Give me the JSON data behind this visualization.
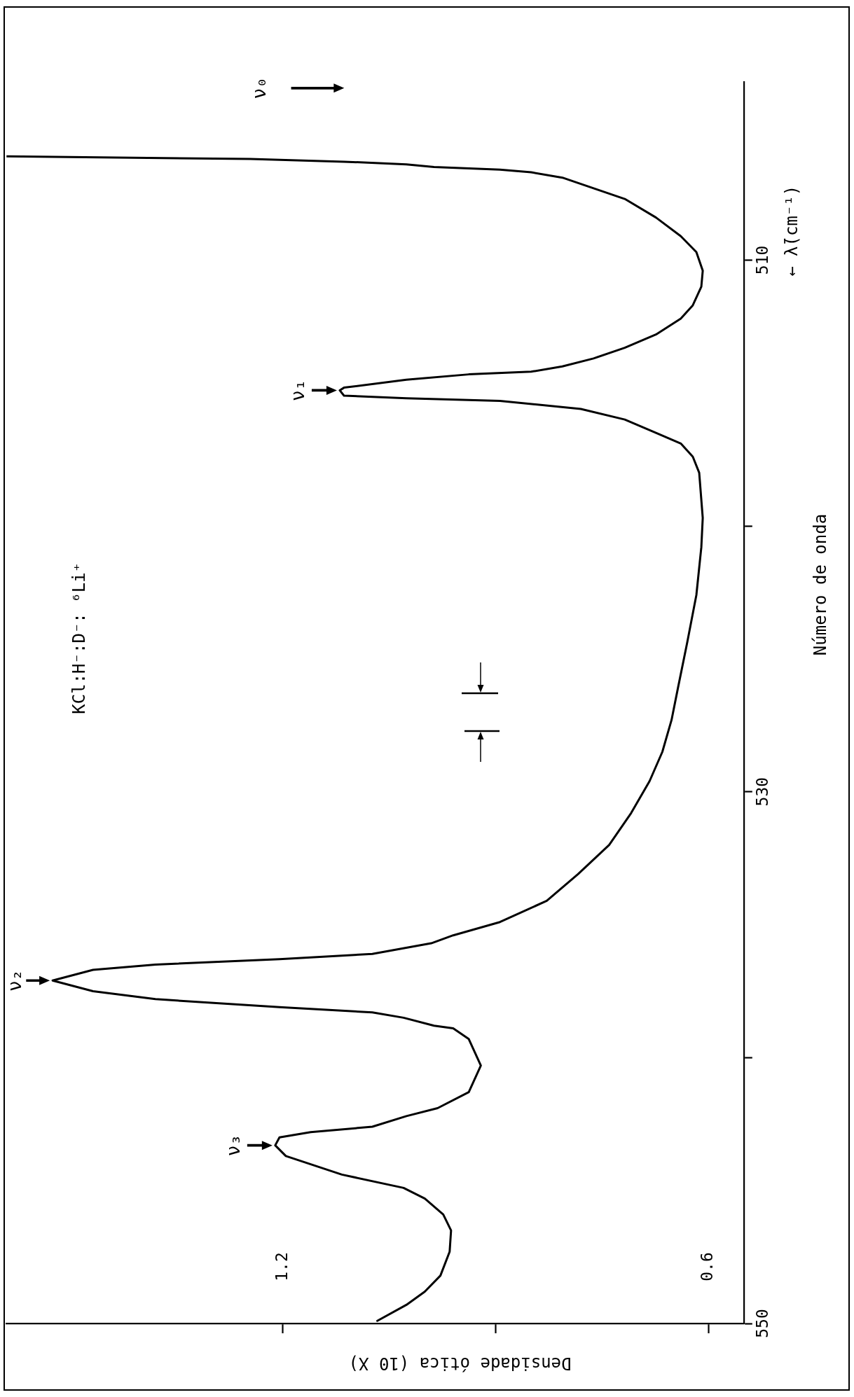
{
  "chart_data": {
    "type": "line",
    "title": "KCl:H⁻:D⁻: ⁶Li⁺",
    "xlabel": "Densidade ótica (10 X)",
    "ylabel": "Número de onda",
    "x": [
      1.59,
      1.246,
      1.114,
      1.026,
      0.987,
      0.894,
      0.85,
      0.806,
      0.762,
      0.718,
      0.674,
      0.639,
      0.617,
      0.608,
      0.61,
      0.622,
      0.639,
      0.674,
      0.718,
      0.762,
      0.806,
      0.85,
      0.938,
      1.026,
      1.114,
      1.12,
      1.114,
      1.026,
      0.894,
      0.78,
      0.718,
      0.674,
      0.639,
      0.622,
      0.613,
      0.608,
      0.61,
      0.617,
      0.63,
      0.643,
      0.652,
      0.665,
      0.683,
      0.709,
      0.74,
      0.784,
      0.828,
      0.894,
      0.96,
      0.991,
      1.074,
      1.205,
      1.38,
      1.468,
      1.525,
      1.468,
      1.38,
      1.205,
      1.074,
      1.03,
      0.987,
      0.96,
      0.938,
      0.921,
      0.938,
      0.982,
      1.026,
      1.074,
      1.161,
      1.205,
      1.211,
      1.196,
      1.117,
      1.03,
      1.0,
      0.974,
      0.963,
      0.965,
      0.978,
      1.0,
      1.026,
      1.067
    ],
    "values": [
      506.1,
      506.2,
      506.3,
      506.4,
      506.5,
      506.6,
      506.7,
      506.9,
      507.3,
      507.7,
      508.4,
      509.1,
      509.7,
      510.4,
      511.0,
      511.7,
      512.2,
      512.8,
      513.3,
      513.7,
      514.0,
      514.2,
      514.3,
      514.5,
      514.8,
      514.9,
      515.1,
      515.2,
      515.3,
      515.6,
      516.0,
      516.5,
      516.9,
      517.4,
      518.0,
      519.7,
      520.8,
      522.6,
      524.4,
      526.1,
      527.3,
      528.5,
      529.6,
      530.8,
      532.0,
      533.1,
      534.1,
      534.9,
      535.4,
      535.7,
      536.1,
      536.3,
      536.5,
      536.7,
      537.1,
      537.5,
      537.8,
      538.1,
      538.3,
      538.5,
      538.8,
      538.9,
      539.3,
      540.3,
      541.3,
      541.9,
      542.2,
      542.6,
      542.8,
      543.0,
      543.3,
      543.7,
      544.4,
      544.9,
      545.3,
      545.9,
      546.5,
      547.3,
      548.2,
      548.8,
      549.3,
      549.9
    ],
    "color": "#000000",
    "marker": "none",
    "xlim": [
      1.59,
      0.55
    ],
    "xticks": [
      1.2,
      {
        "value": 0.9,
        "label": null
      },
      0.6
    ],
    "ylim": [
      550,
      503.3
    ],
    "yticks": [
      510,
      {
        "value": 520,
        "label": null
      },
      530,
      {
        "value": 540,
        "label": null
      },
      550
    ],
    "annotations": [
      "ν₀",
      {
        "text": "ν₁",
        "x": 1.12,
        "y": 514.9
      },
      {
        "text": "ν₂",
        "x": 1.525,
        "y": 537.1
      },
      {
        "text": "ν₃",
        "x": 1.211,
        "y": 543.3
      },
      "← λ̄(cm⁻¹)"
    ]
  }
}
